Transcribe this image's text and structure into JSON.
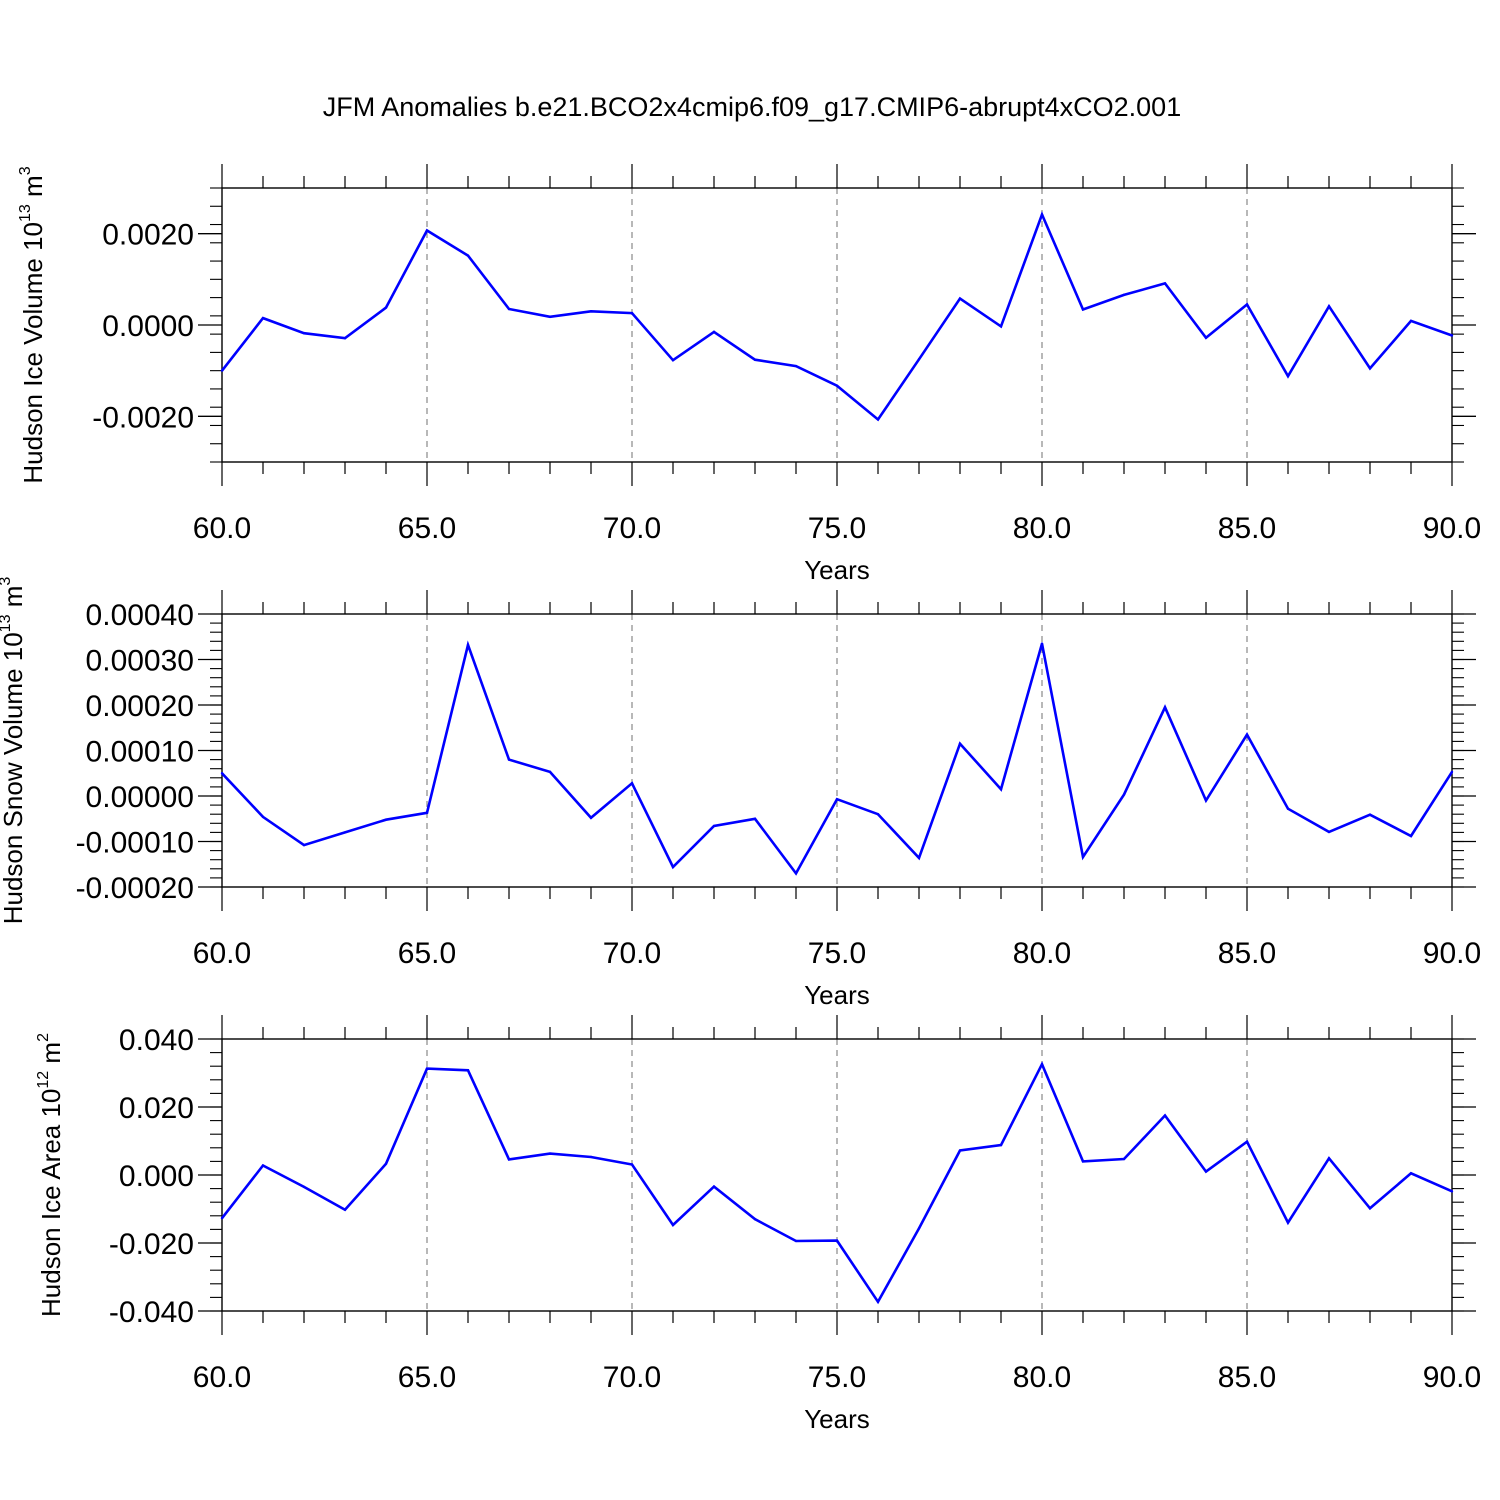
{
  "page": {
    "title": "JFM Anomalies b.e21.BCO2x4cmip6.f09_g17.CMIP6-abrupt4xCO2.001"
  },
  "colors": {
    "series": "#0000ff",
    "axis": "#000000",
    "grid": "#888888",
    "background": "#ffffff"
  },
  "chart_data": [
    {
      "type": "line",
      "title": "JFM Anomalies b.e21.BCO2x4cmip6.f09_g17.CMIP6-abrupt4xCO2.001",
      "ylabel": {
        "main": "Hudson Ice Volume 10",
        "exp1": "13",
        "unit": " m",
        "exp2": "3"
      },
      "xlabel": "Years",
      "xlim": [
        60,
        90
      ],
      "ylim": [
        -0.003,
        0.003
      ],
      "xticks": [
        "60.0",
        "65.0",
        "70.0",
        "75.0",
        "80.0",
        "85.0",
        "90.0"
      ],
      "yticks": [
        "-0.0020",
        "0.0000",
        "0.0020"
      ],
      "ytick_values": [
        -0.002,
        0.0,
        0.002
      ],
      "grid": "vertical-dashed",
      "x": [
        60,
        61,
        62,
        63,
        64,
        65,
        66,
        67,
        68,
        69,
        70,
        71,
        72,
        73,
        74,
        75,
        76,
        77,
        78,
        79,
        80,
        81,
        82,
        83,
        84,
        85,
        86,
        87,
        88,
        89,
        90
      ],
      "values": [
        -0.001,
        0.00015,
        -0.00018,
        -0.00029,
        0.00038,
        0.00207,
        0.00152,
        0.00035,
        0.00018,
        0.0003,
        0.00026,
        -0.00077,
        -0.00015,
        -0.00076,
        -0.0009,
        -0.00133,
        -0.00207,
        -0.00075,
        0.00058,
        -3e-05,
        0.00242,
        0.00034,
        0.00066,
        0.00091,
        -0.00028,
        0.00045,
        -0.00112,
        0.00041,
        -0.00095,
        9e-05,
        -0.00023
      ]
    },
    {
      "type": "line",
      "ylabel": {
        "main": "Hudson Snow Volume 10",
        "exp1": "13",
        "unit": " m",
        "exp2": "3"
      },
      "xlabel": "Years",
      "xlim": [
        60,
        90
      ],
      "ylim": [
        -0.0002,
        0.0004
      ],
      "xticks": [
        "60.0",
        "65.0",
        "70.0",
        "75.0",
        "80.0",
        "85.0",
        "90.0"
      ],
      "yticks": [
        "-0.00020",
        "-0.00010",
        "0.00000",
        "0.00010",
        "0.00020",
        "0.00030",
        "0.00040"
      ],
      "ytick_values": [
        -0.0002,
        -0.0001,
        0.0,
        0.0001,
        0.0002,
        0.0003,
        0.0004
      ],
      "grid": "vertical-dashed",
      "x": [
        60,
        61,
        62,
        63,
        64,
        65,
        66,
        67,
        68,
        69,
        70,
        71,
        72,
        73,
        74,
        75,
        76,
        77,
        78,
        79,
        80,
        81,
        82,
        83,
        84,
        85,
        86,
        87,
        88,
        89,
        90
      ],
      "values": [
        5e-05,
        -4.6e-05,
        -0.000108,
        -8e-05,
        -5.2e-05,
        -3.7e-05,
        0.000332,
        8e-05,
        5.3e-05,
        -4.8e-05,
        2.8e-05,
        -0.000156,
        -6.6e-05,
        -5e-05,
        -0.00017,
        -7e-06,
        -4e-05,
        -0.000136,
        0.000115,
        1.5e-05,
        0.000335,
        -0.000134,
        3e-06,
        0.000195,
        -1e-05,
        0.000135,
        -2.8e-05,
        -7.9e-05,
        -4.1e-05,
        -8.8e-05,
        5.3e-05
      ]
    },
    {
      "type": "line",
      "ylabel": {
        "main": "Hudson Ice Area 10",
        "exp1": "12",
        "unit": " m",
        "exp2": "2"
      },
      "xlabel": "Years",
      "xlim": [
        60,
        90
      ],
      "ylim": [
        -0.04,
        0.04
      ],
      "xticks": [
        "60.0",
        "65.0",
        "70.0",
        "75.0",
        "80.0",
        "85.0",
        "90.0"
      ],
      "yticks": [
        "-0.040",
        "-0.020",
        "0.000",
        "0.020",
        "0.040"
      ],
      "ytick_values": [
        -0.04,
        -0.02,
        0.0,
        0.02,
        0.04
      ],
      "grid": "vertical-dashed",
      "x": [
        60,
        61,
        62,
        63,
        64,
        65,
        66,
        67,
        68,
        69,
        70,
        71,
        72,
        73,
        74,
        75,
        76,
        77,
        78,
        79,
        80,
        81,
        82,
        83,
        84,
        85,
        86,
        87,
        88,
        89,
        90
      ],
      "values": [
        -0.0127,
        0.0028,
        -0.0035,
        -0.0102,
        0.0033,
        0.0313,
        0.0308,
        0.0046,
        0.0063,
        0.0053,
        0.0031,
        -0.0147,
        -0.0034,
        -0.013,
        -0.0194,
        -0.0193,
        -0.0373,
        -0.0157,
        0.0072,
        0.0088,
        0.0326,
        0.004,
        0.0047,
        0.0175,
        0.001,
        0.0098,
        -0.014,
        0.0049,
        -0.0098,
        0.0005,
        -0.0048
      ]
    }
  ]
}
